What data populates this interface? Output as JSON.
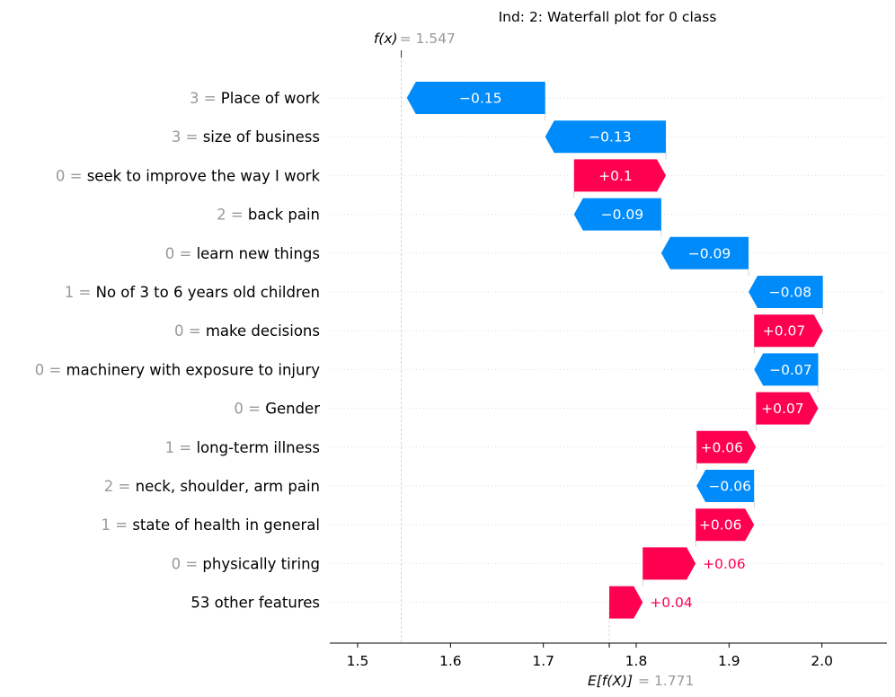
{
  "chart_data": {
    "type": "waterfall",
    "title": "Ind: 2: Waterfall plot for 0 class",
    "fx_label": "f(x)",
    "fx_value_label": "= 1.547",
    "fx": 1.547,
    "base_label": "E[f(X)]",
    "base_value_label": "= 1.771",
    "base_value": 1.771,
    "xlim": [
      1.47,
      2.07
    ],
    "xticks": [
      1.5,
      1.6,
      1.7,
      1.8,
      1.9,
      2.0
    ],
    "xtick_labels": [
      "1.5",
      "1.6",
      "1.7",
      "1.8",
      "1.9",
      "2.0"
    ],
    "grid": false,
    "colors": {
      "positive": "#ff0051",
      "negative": "#008bfb",
      "grey_text": "#999999"
    },
    "features": [
      {
        "value": "3 =",
        "name": "Place of work",
        "contribution": -0.149,
        "label": "−0.15"
      },
      {
        "value": "3 =",
        "name": "size of business",
        "contribution": -0.13,
        "label": "−0.13"
      },
      {
        "value": "0 =",
        "name": "seek to improve the way I work",
        "contribution": 0.099,
        "label": "+0.1"
      },
      {
        "value": "2 =",
        "name": "back pain",
        "contribution": -0.094,
        "label": "−0.09"
      },
      {
        "value": "0 =",
        "name": "learn new things",
        "contribution": -0.094,
        "label": "−0.09"
      },
      {
        "value": "1 =",
        "name": "No of 3 to 6 years old children",
        "contribution": -0.08,
        "label": "−0.08"
      },
      {
        "value": "0 =",
        "name": "make decisions",
        "contribution": 0.074,
        "label": "+0.07"
      },
      {
        "value": "0 =",
        "name": "machinery with exposure to injury",
        "contribution": -0.069,
        "label": "−0.07"
      },
      {
        "value": "0 =",
        "name": "Gender",
        "contribution": 0.067,
        "label": "+0.07"
      },
      {
        "value": "1 =",
        "name": "long-term illness",
        "contribution": 0.064,
        "label": "+0.06"
      },
      {
        "value": "2 =",
        "name": "neck, shoulder, arm pain",
        "contribution": -0.062,
        "label": "−0.06"
      },
      {
        "value": "1 =",
        "name": "state of health in general",
        "contribution": 0.063,
        "label": "+0.06"
      },
      {
        "value": "0 =",
        "name": "physically tiring",
        "contribution": 0.057,
        "label": "+0.06"
      },
      {
        "value": "",
        "name": "53 other features",
        "contribution": 0.036,
        "label": "+0.04"
      }
    ]
  }
}
